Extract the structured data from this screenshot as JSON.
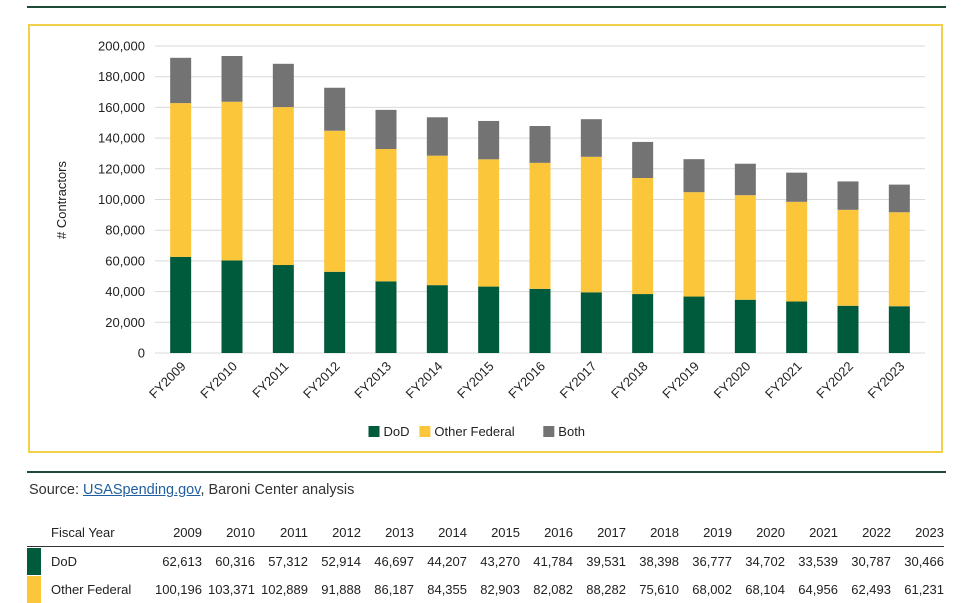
{
  "chart_data": {
    "type": "bar",
    "stacked": true,
    "categories": [
      "FY2009",
      "FY2010",
      "FY2011",
      "FY2012",
      "FY2013",
      "FY2014",
      "FY2015",
      "FY2016",
      "FY2017",
      "FY2018",
      "FY2019",
      "FY2020",
      "FY2021",
      "FY2022",
      "FY2023"
    ],
    "series": [
      {
        "name": "DoD",
        "color": "#005a3c",
        "values": [
          62613,
          60316,
          57312,
          52914,
          46697,
          44207,
          43270,
          41784,
          39531,
          38398,
          36777,
          34702,
          33539,
          30787,
          30466
        ]
      },
      {
        "name": "Other Federal",
        "color": "#fcc63a",
        "values": [
          100196,
          103371,
          102889,
          91888,
          86187,
          84355,
          82903,
          82082,
          88282,
          75610,
          68002,
          68104,
          64956,
          62493,
          61231
        ]
      },
      {
        "name": "Both",
        "color": "#737373",
        "values": [
          29500,
          29800,
          28200,
          28000,
          25500,
          25000,
          25000,
          24000,
          24500,
          23500,
          21500,
          20500,
          19000,
          18500,
          18000
        ]
      }
    ],
    "ylabel": "# Contractors",
    "xlabel": "",
    "ylim": [
      0,
      200000
    ],
    "yticks": [
      "0",
      "20,000",
      "40,000",
      "60,000",
      "80,000",
      "100,000",
      "120,000",
      "140,000",
      "160,000",
      "180,000",
      "200,000"
    ],
    "grid": true,
    "legend_position": "bottom-center"
  },
  "source": {
    "prefix": "Source: ",
    "link_text": "USASpending.gov",
    "suffix": ", Baroni Center analysis"
  },
  "table": {
    "header_label": "Fiscal Year",
    "years": [
      "2009",
      "2010",
      "2011",
      "2012",
      "2013",
      "2014",
      "2015",
      "2016",
      "2017",
      "2018",
      "2019",
      "2020",
      "2021",
      "2022",
      "2023"
    ],
    "rows": [
      {
        "label": "DoD",
        "color": "#005a3c",
        "values": [
          "62,613",
          "60,316",
          "57,312",
          "52,914",
          "46,697",
          "44,207",
          "43,270",
          "41,784",
          "39,531",
          "38,398",
          "36,777",
          "34,702",
          "33,539",
          "30,787",
          "30,466"
        ]
      },
      {
        "label": "Other Federal",
        "color": "#fcc63a",
        "values": [
          "100,196",
          "103,371",
          "102,889",
          "91,888",
          "86,187",
          "84,355",
          "82,903",
          "82,082",
          "88,282",
          "75,610",
          "68,002",
          "68,104",
          "64,956",
          "62,493",
          "61,231"
        ]
      }
    ]
  }
}
